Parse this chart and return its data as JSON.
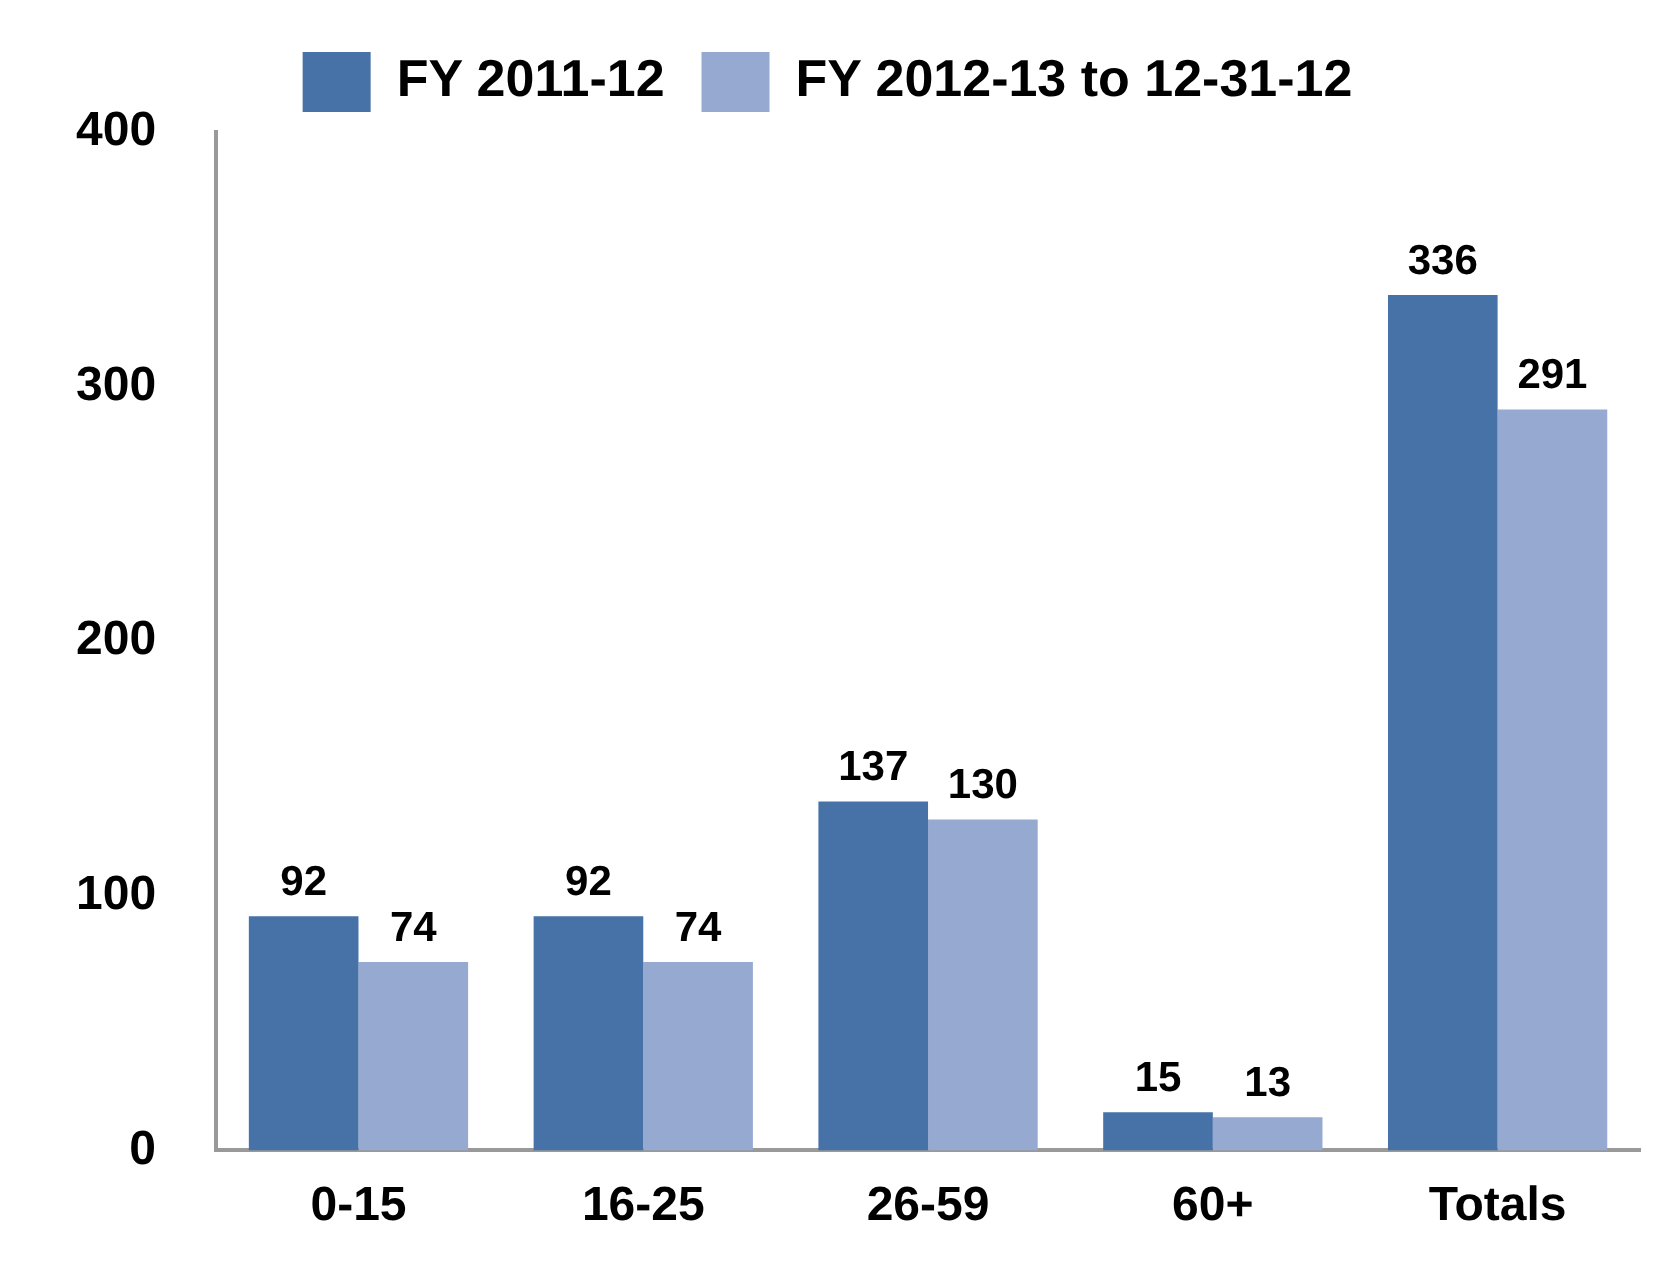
{
  "chart_data": {
    "type": "bar",
    "categories": [
      "0-15",
      "16-25",
      "26-59",
      "60+",
      "Totals"
    ],
    "series": [
      {
        "name": "FY 2011-12",
        "color": "#4672a8",
        "values": [
          92,
          92,
          137,
          15,
          336
        ]
      },
      {
        "name": "FY 2012-13 to 12-31-12",
        "color": "#95a9d1",
        "values": [
          74,
          74,
          130,
          13,
          291
        ]
      }
    ],
    "ylim": [
      0,
      400
    ],
    "yticks": [
      0,
      100,
      200,
      300,
      400
    ],
    "grid": false,
    "legend": "top",
    "data_labels": true
  }
}
